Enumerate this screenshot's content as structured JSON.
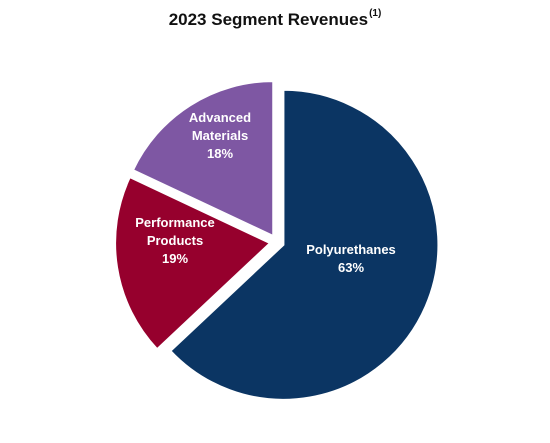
{
  "chart_data": {
    "type": "pie",
    "title": "2023 Segment Revenues",
    "title_footnote": "(1)",
    "slices": [
      {
        "label_lines": [
          "Polyurethanes"
        ],
        "value_label": "63%",
        "value": 63,
        "color": "#0b3563"
      },
      {
        "label_lines": [
          "Performance",
          "Products"
        ],
        "value_label": "19%",
        "value": 19,
        "color": "#96002d"
      },
      {
        "label_lines": [
          "Advanced",
          "Materials"
        ],
        "value_label": "18%",
        "value": 18,
        "color": "#7e57a3"
      }
    ],
    "legend": "none",
    "grid": false
  }
}
